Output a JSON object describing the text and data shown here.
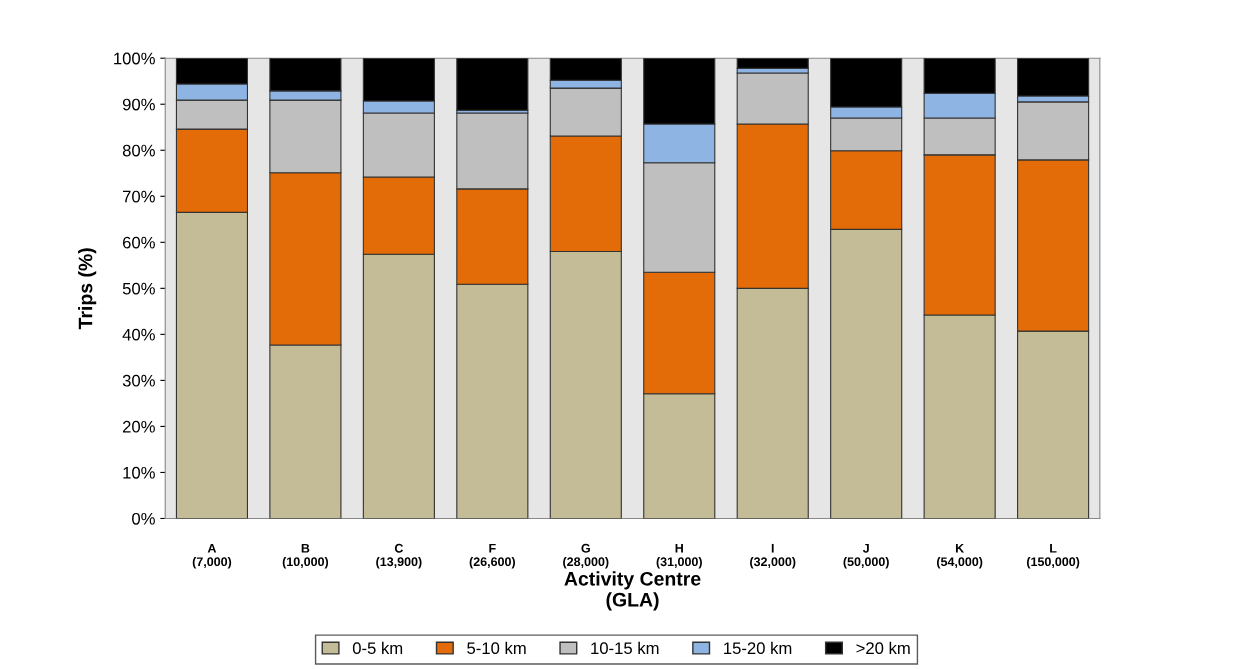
{
  "chart_data": {
    "type": "bar",
    "stacked": true,
    "xlabel": "Activity Centre\n(GLA)",
    "ylabel": "Trips (%)",
    "categories": [
      "A\n(7,000)",
      "B\n(10,000)",
      "C\n(13,900)",
      "F\n(26,600)",
      "G\n(28,000)",
      "H\n(31,000)",
      "I\n(32,000)",
      "J\n(50,000)",
      "K\n(54,000)",
      "L\n(150,000)"
    ],
    "series": [
      {
        "name": "0-5 km",
        "color": "#c4bc96",
        "values": [
          66.5,
          37.7,
          57.4,
          50.9,
          58.0,
          27.1,
          50.0,
          62.8,
          44.2,
          40.7
        ]
      },
      {
        "name": "5-10 km",
        "color": "#e36c09",
        "values": [
          18.1,
          37.4,
          16.8,
          20.7,
          25.1,
          26.4,
          35.7,
          17.1,
          34.8,
          37.2
        ]
      },
      {
        "name": "10-15 km",
        "color": "#bfbfbf",
        "values": [
          6.3,
          15.8,
          13.9,
          16.5,
          10.4,
          23.8,
          11.1,
          7.1,
          8.0,
          12.6
        ]
      },
      {
        "name": "15-20 km",
        "color": "#8eb4e3",
        "values": [
          3.5,
          2.0,
          2.6,
          0.6,
          1.7,
          8.4,
          1.0,
          2.4,
          5.4,
          1.3
        ]
      },
      {
        "name": ">20 km",
        "color": "#000000",
        "values": [
          5.6,
          7.1,
          9.3,
          11.3,
          4.8,
          14.3,
          2.2,
          10.6,
          7.6,
          8.2
        ]
      }
    ],
    "ylim": [
      0,
      100
    ],
    "yticks": [
      {
        "value": 0,
        "label": "0%"
      },
      {
        "value": 10,
        "label": "10%"
      },
      {
        "value": 20,
        "label": "20%"
      },
      {
        "value": 30,
        "label": "30%"
      },
      {
        "value": 40,
        "label": "40%"
      },
      {
        "value": 50,
        "label": "50%"
      },
      {
        "value": 60,
        "label": "60%"
      },
      {
        "value": 70,
        "label": "70%"
      },
      {
        "value": 80,
        "label": "80%"
      },
      {
        "value": 90,
        "label": "90%"
      },
      {
        "value": 100,
        "label": "100%"
      }
    ],
    "grid": false,
    "legend": "bottom"
  }
}
